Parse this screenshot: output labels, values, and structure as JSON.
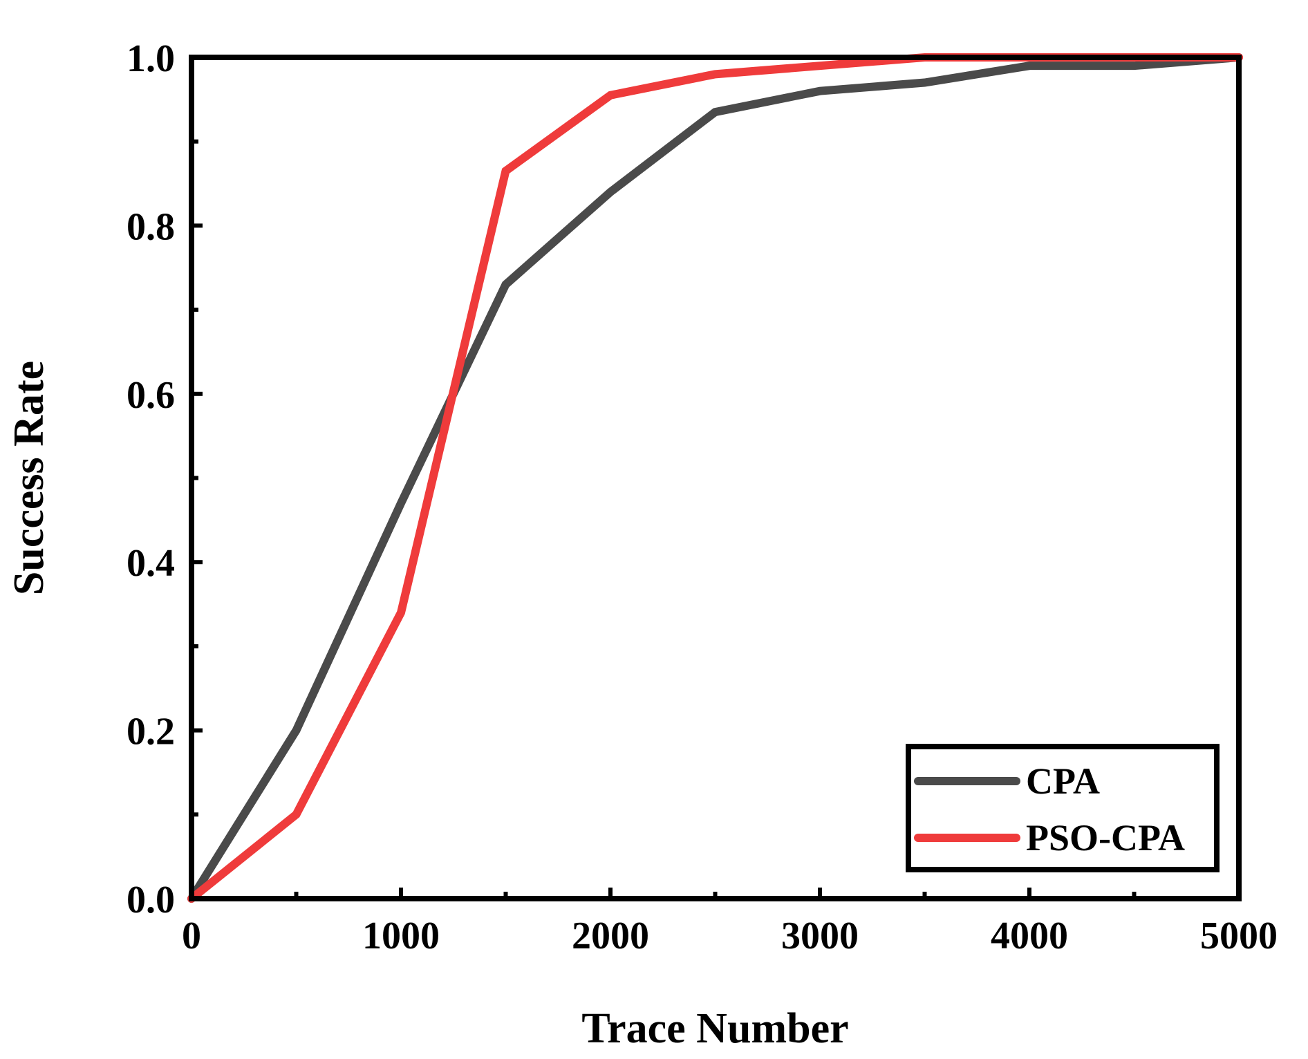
{
  "chart_data": {
    "type": "line",
    "title": "",
    "xlabel": "Trace Number",
    "ylabel": "Success Rate",
    "xlim": [
      0,
      5000
    ],
    "ylim": [
      0,
      1.0
    ],
    "xticks": [
      0,
      1000,
      2000,
      3000,
      4000,
      5000
    ],
    "xtick_labels": [
      "0",
      "1000",
      "2000",
      "3000",
      "4000",
      "5000"
    ],
    "yticks": [
      0,
      0.2,
      0.4,
      0.6,
      0.8,
      1.0
    ],
    "ytick_labels": [
      "0.0",
      "0.2",
      "0.4",
      "0.6",
      "0.8",
      "1.0"
    ],
    "grid": false,
    "legend_position": "bottom-right",
    "series": [
      {
        "name": "CPA",
        "color": "#4a4a4a",
        "x": [
          0,
          500,
          1000,
          1500,
          2000,
          2500,
          3000,
          3500,
          4000,
          4500,
          5000
        ],
        "y": [
          0.0,
          0.2,
          0.47,
          0.73,
          0.84,
          0.935,
          0.96,
          0.97,
          0.99,
          0.99,
          1.0
        ]
      },
      {
        "name": "PSO-CPA",
        "color": "#ef3b3b",
        "x": [
          0,
          500,
          1000,
          1500,
          2000,
          2500,
          3000,
          3500,
          4000,
          4500,
          5000
        ],
        "y": [
          0.0,
          0.1,
          0.34,
          0.865,
          0.955,
          0.98,
          0.99,
          1.0,
          1.0,
          1.0,
          1.0
        ]
      }
    ]
  }
}
